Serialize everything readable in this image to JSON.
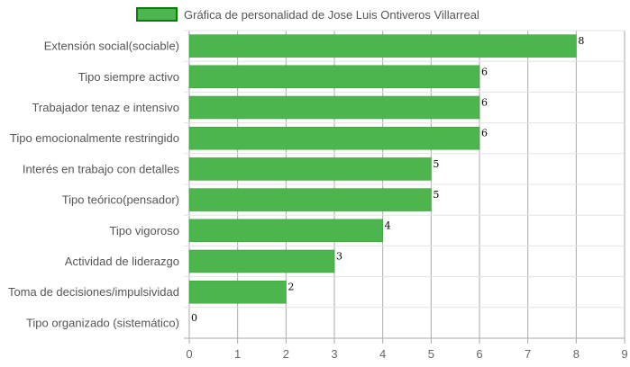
{
  "chart_data": {
    "type": "bar",
    "orientation": "horizontal",
    "categories": [
      "Extensión social(sociable)",
      "Tipo siempre activo",
      "Trabajador tenaz e intensivo",
      "Tipo emocionalmente restringido",
      "Interés en trabajo con detalles",
      "Tipo teórico(pensador)",
      "Tipo vigoroso",
      "Actividad de liderazgo",
      "Toma de decisiones/impulsividad",
      "Tipo organizado (sistemático)"
    ],
    "series": [
      {
        "name": "Gráfica de personalidad de Jose Luis Ontiveros Villarreal",
        "values": [
          8,
          6,
          6,
          6,
          5,
          5,
          4,
          3,
          2,
          0
        ]
      }
    ],
    "xlim": [
      0,
      9
    ],
    "xticks": [
      "0",
      "1",
      "2",
      "3",
      "4",
      "5",
      "6",
      "7",
      "8",
      "9"
    ],
    "grid": true,
    "legend_position": "top",
    "colors": {
      "bar_fill": "#4db54d",
      "bar_border": "#2e9e2e",
      "legend_border": "#0a7a0a",
      "grid": "#cccccc",
      "axis": "#aaaaaa"
    }
  }
}
